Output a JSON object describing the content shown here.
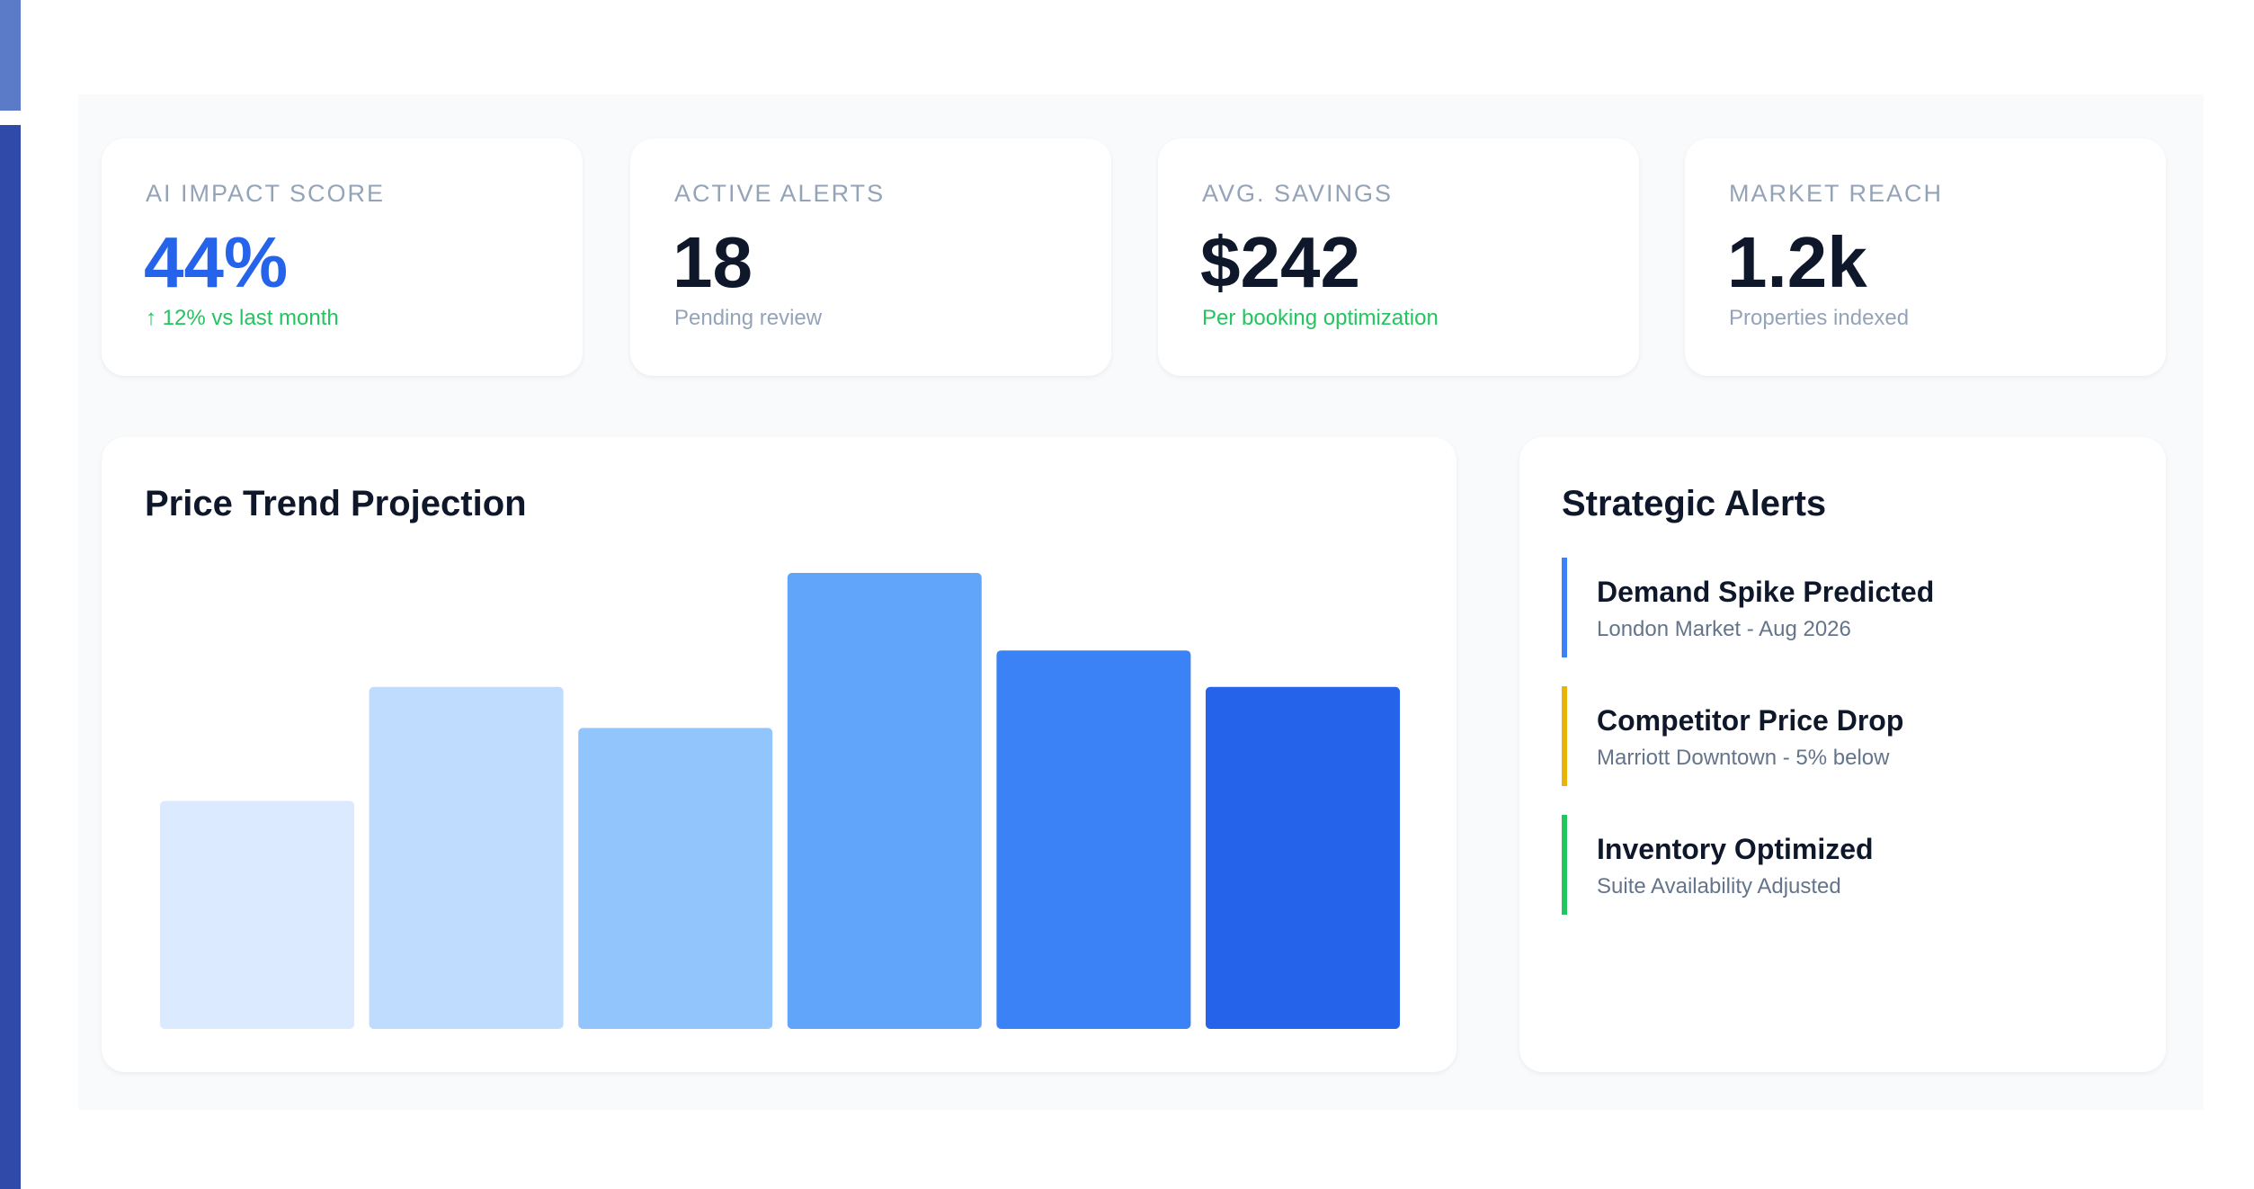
{
  "kpis": [
    {
      "label": "AI IMPACT SCORE",
      "value": "44%",
      "sub": "↑ 12% vs last month"
    },
    {
      "label": "ACTIVE ALERTS",
      "value": "18",
      "sub": "Pending review"
    },
    {
      "label": "AVG. SAVINGS",
      "value": "$242",
      "sub": "Per booking optimization"
    },
    {
      "label": "MARKET REACH",
      "value": "1.2k",
      "sub": "Properties indexed"
    }
  ],
  "chart_data": {
    "type": "bar",
    "title": "Price Trend Projection",
    "categories": [
      null,
      null,
      null,
      null,
      null,
      null
    ],
    "values": [
      50,
      75,
      66,
      100,
      83,
      75
    ],
    "colors": [
      "#dbeafe",
      "#bfdbfe",
      "#93c5fd",
      "#60a5fa",
      "#3b82f6",
      "#2563eb"
    ],
    "ylim": [
      0,
      100
    ]
  },
  "alerts": {
    "title": "Strategic Alerts",
    "items": [
      {
        "title": "Demand Spike Predicted",
        "sub": "London Market - Aug 2026",
        "color": "#3b82f6"
      },
      {
        "title": "Competitor Price Drop",
        "sub": "Marriott Downtown - 5% below",
        "color": "#eab308"
      },
      {
        "title": "Inventory Optimized",
        "sub": "Suite Availability Adjusted",
        "color": "#22c55e"
      }
    ]
  }
}
